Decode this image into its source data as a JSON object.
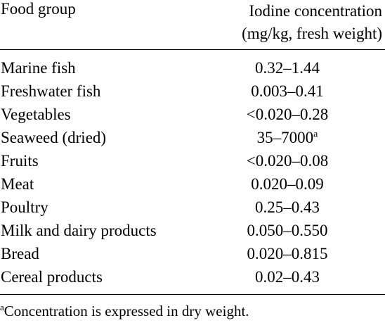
{
  "table": {
    "header": {
      "food_group": "Food group",
      "concentration_line1": "Iodine concentration",
      "concentration_line2": "(mg/kg, fresh weight)"
    },
    "rows": [
      {
        "food": "Marine fish",
        "concentration": "0.32–1.44",
        "note": ""
      },
      {
        "food": "Freshwater fish",
        "concentration": "0.003–0.41",
        "note": ""
      },
      {
        "food": "Vegetables",
        "concentration": "<0.020–0.28",
        "note": ""
      },
      {
        "food": "Seaweed (dried)",
        "concentration": "35–7000",
        "note": "a"
      },
      {
        "food": "Fruits",
        "concentration": "<0.020–0.08",
        "note": ""
      },
      {
        "food": "Meat",
        "concentration": "0.020–0.09",
        "note": ""
      },
      {
        "food": "Poultry",
        "concentration": "0.25–0.43",
        "note": ""
      },
      {
        "food": "Milk and dairy products",
        "concentration": "0.050–0.550",
        "note": ""
      },
      {
        "food": "Bread",
        "concentration": "0.020–0.815",
        "note": ""
      },
      {
        "food": "Cereal products",
        "concentration": "0.02–0.43",
        "note": ""
      }
    ],
    "footnote": {
      "marker": "a",
      "text": "Concentration is expressed in dry weight."
    }
  }
}
